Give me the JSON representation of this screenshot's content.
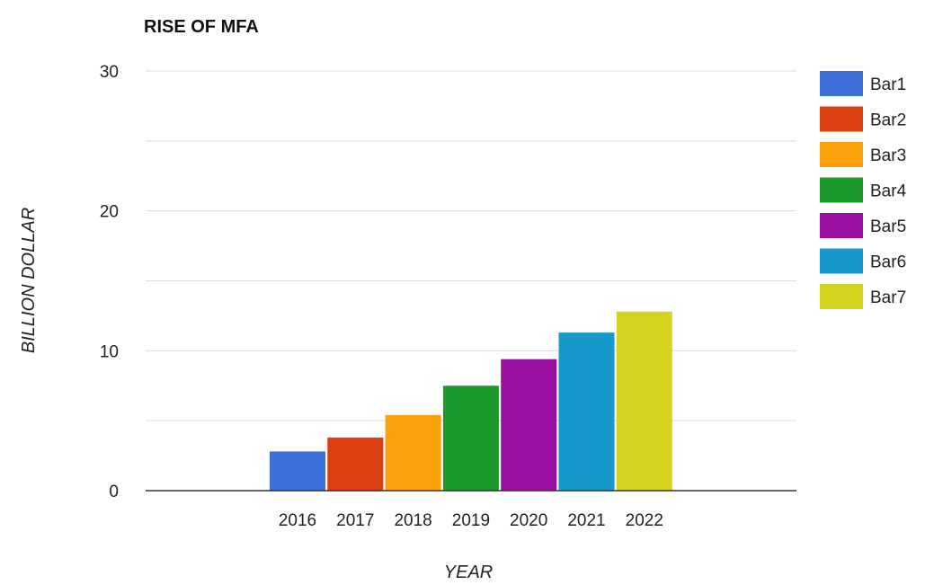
{
  "chart_data": {
    "type": "bar",
    "title": "RISE OF MFA",
    "xlabel": "YEAR",
    "ylabel": "BILLION DOLLAR",
    "ylim": [
      0,
      30
    ],
    "yticks": [
      0,
      10,
      20,
      30
    ],
    "grid": true,
    "legend_position": "right",
    "categories": [
      "2016",
      "2017",
      "2018",
      "2019",
      "2020",
      "2021",
      "2022"
    ],
    "series": [
      {
        "name": "Bar1",
        "category": "2016",
        "value": 2.8,
        "color": "#3d6fd8"
      },
      {
        "name": "Bar2",
        "category": "2017",
        "value": 3.8,
        "color": "#dc3f12"
      },
      {
        "name": "Bar3",
        "category": "2018",
        "value": 5.4,
        "color": "#fba20b"
      },
      {
        "name": "Bar4",
        "category": "2019",
        "value": 7.5,
        "color": "#1d9a2c"
      },
      {
        "name": "Bar5",
        "category": "2020",
        "value": 9.4,
        "color": "#9b0fa0"
      },
      {
        "name": "Bar6",
        "category": "2021",
        "value": 11.3,
        "color": "#1899cc"
      },
      {
        "name": "Bar7",
        "category": "2022",
        "value": 12.8,
        "color": "#d3d21c"
      }
    ]
  }
}
